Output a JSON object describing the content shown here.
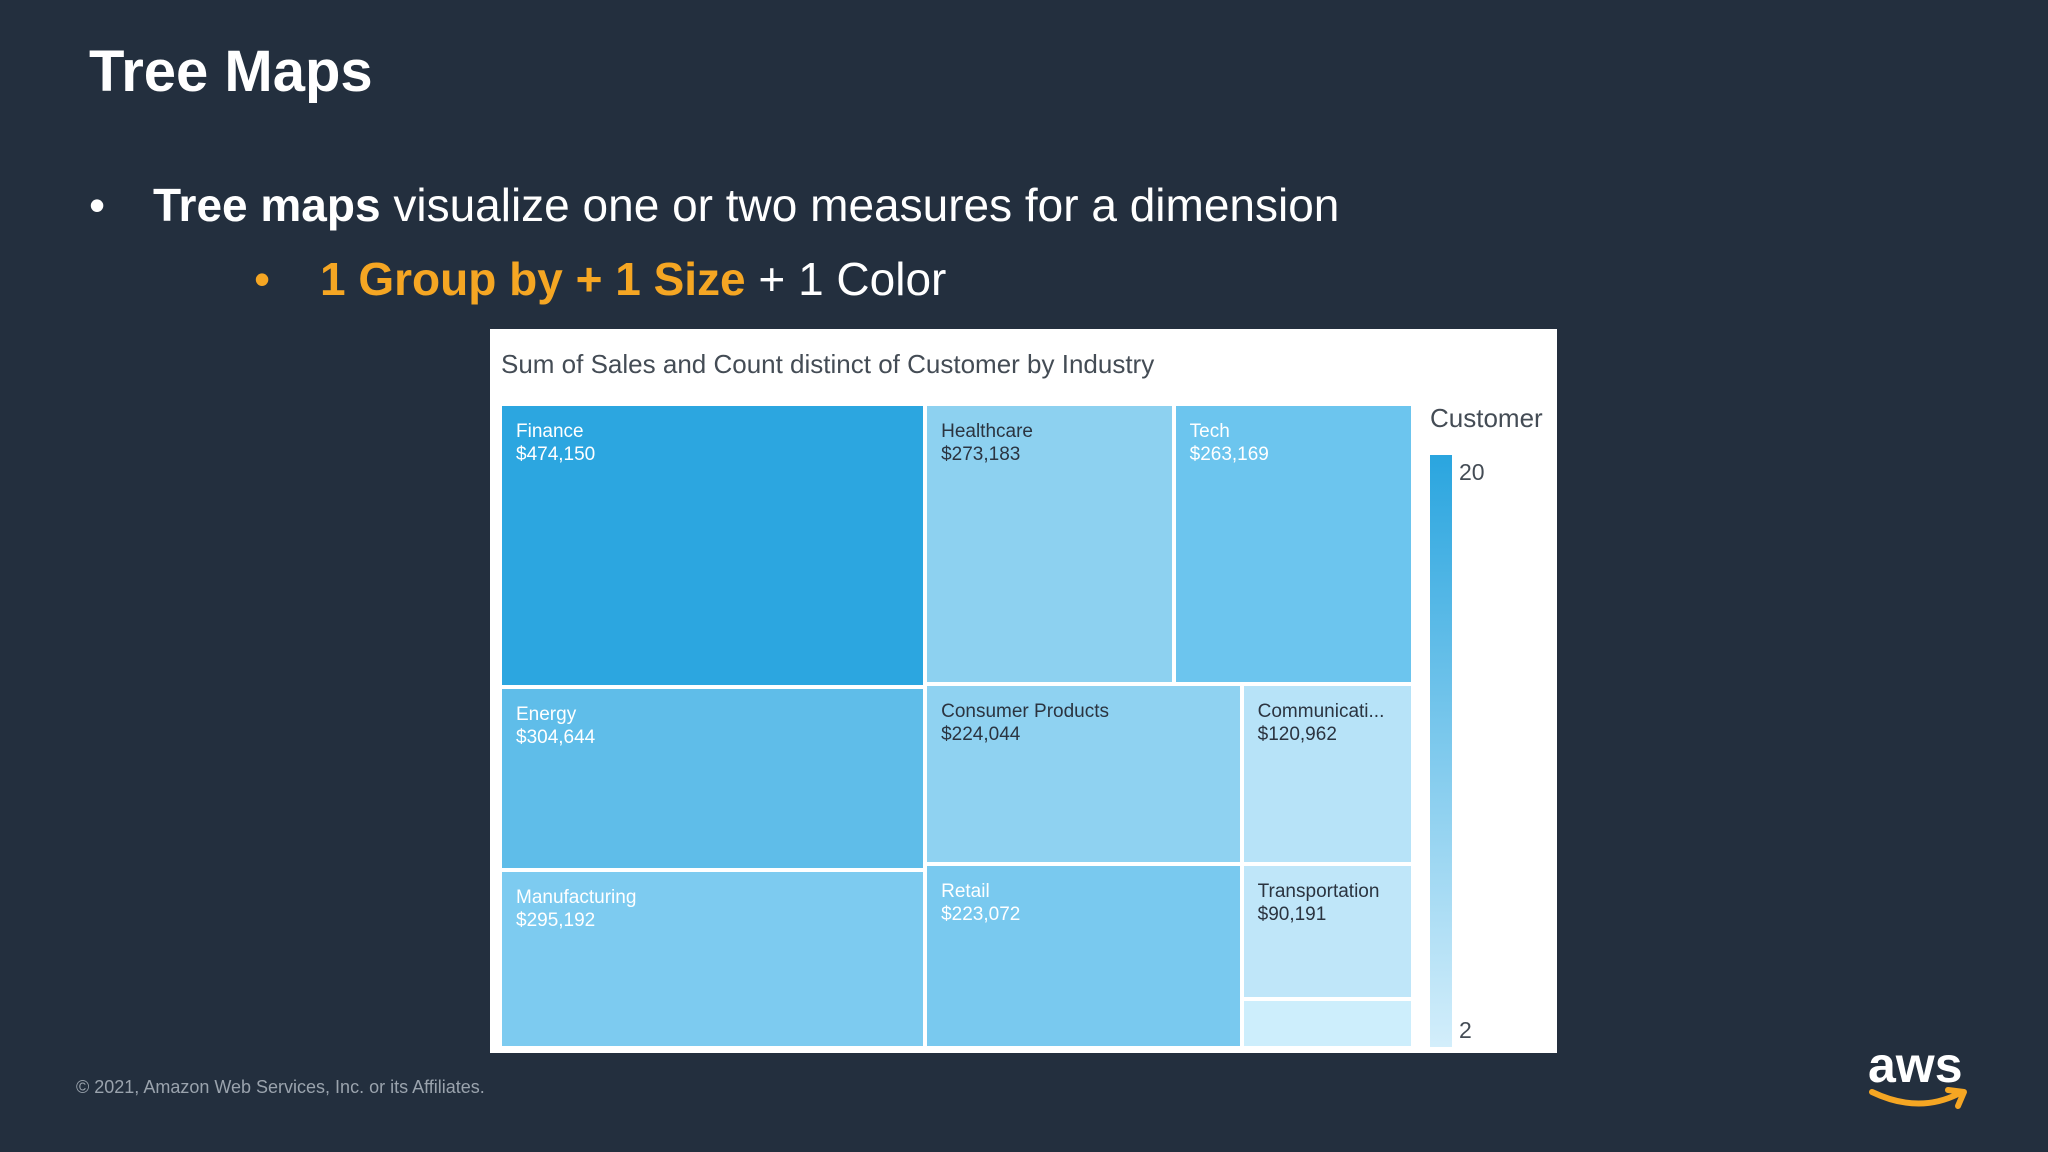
{
  "slide": {
    "title": "Tree Maps",
    "bullet": {
      "marker": "•",
      "strong": "Tree maps",
      "rest": " visualize one or two measures for a dimension"
    },
    "sub_bullet": {
      "marker": "•",
      "accent": "1 Group by + 1 Size",
      "rest": " + 1 Color"
    },
    "copyright": "© 2021, Amazon Web Services, Inc. or its Affiliates.",
    "logo_text": "aws"
  },
  "colors": {
    "background": "#232f3e",
    "accent": "#f5a623",
    "logo_smile": "#f5a623"
  },
  "chart_data": {
    "type": "treemap",
    "title": "Sum of Sales and Count distinct of Customer by Industry",
    "size_measure": "Sales",
    "color_measure": "Customer",
    "legend": {
      "title": "Customer",
      "min": 2,
      "max": 20,
      "placement": "right"
    },
    "items": [
      {
        "label": "Finance",
        "value_text": "$474,150",
        "value": 474150,
        "color": "#2ca6e0"
      },
      {
        "label": "Healthcare",
        "value_text": "$273,183",
        "value": 273183,
        "color": "#8dd1f0"
      },
      {
        "label": "Tech",
        "value_text": "$263,169",
        "value": 263169,
        "color": "#6cc5ee"
      },
      {
        "label": "Energy",
        "value_text": "$304,644",
        "value": 304644,
        "color": "#5fbde9"
      },
      {
        "label": "Consumer Products",
        "value_text": "$224,044",
        "value": 224044,
        "color": "#8fd2f1"
      },
      {
        "label": "Communicati...",
        "value_text": "$120,962",
        "value": 120962,
        "color": "#b7e3f8"
      },
      {
        "label": "Manufacturing",
        "value_text": "$295,192",
        "value": 295192,
        "color": "#7dcbf0"
      },
      {
        "label": "Retail",
        "value_text": "$223,072",
        "value": 223072,
        "color": "#79c9ef"
      },
      {
        "label": "Transportation",
        "value_text": "$90,191",
        "value": 90191,
        "color": "#bfe6f9"
      },
      {
        "label": "",
        "value_text": "",
        "value": 45000,
        "color": "#cdeefc"
      }
    ]
  }
}
